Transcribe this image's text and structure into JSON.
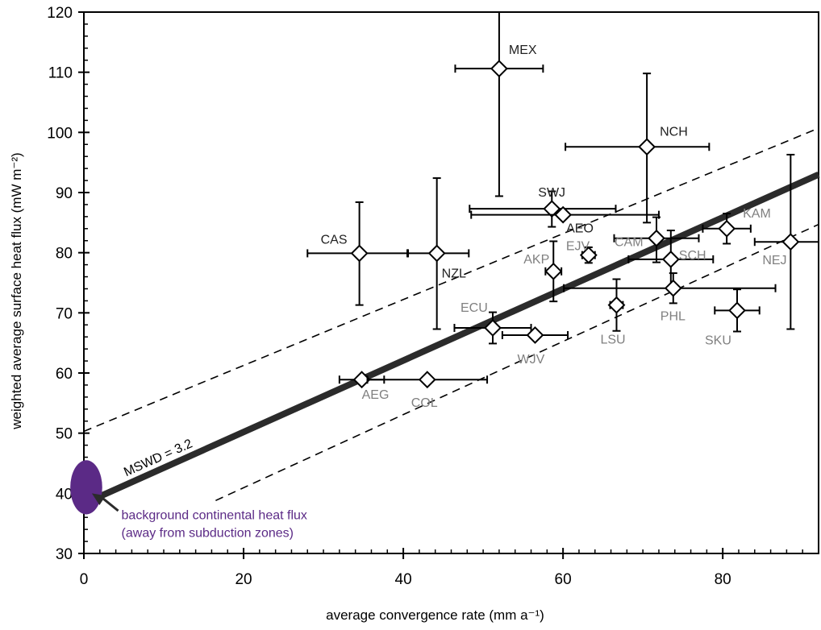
{
  "chart_data": {
    "type": "scatter",
    "title": "",
    "xlabel": "average convergence rate (mm a⁻¹)",
    "ylabel": "weighted average surface heat flux (mW m⁻²)",
    "xlim": [
      0,
      92
    ],
    "ylim": [
      30,
      120
    ],
    "xticks": [
      0,
      20,
      40,
      60,
      80
    ],
    "yticks": [
      30,
      40,
      50,
      60,
      70,
      80,
      90,
      100,
      110,
      120
    ],
    "grid": false,
    "colors": {
      "axis": "#000000",
      "dark_label": "#222222",
      "gray_label": "#808080",
      "fit_line": "#2b2b2b",
      "background_flux": "#5b2a86"
    },
    "points": [
      {
        "label": "MEX",
        "x": 52.0,
        "y": 110.6,
        "xerr": [
          5.5,
          5.5
        ],
        "yerr": [
          21.2,
          9.4
        ],
        "label_color": "dark"
      },
      {
        "label": "NCH",
        "x": 70.5,
        "y": 97.6,
        "xerr": [
          10.2,
          7.8
        ],
        "yerr": [
          12.6,
          12.2
        ],
        "label_color": "dark"
      },
      {
        "label": "SWJ",
        "x": 58.6,
        "y": 87.3,
        "xerr": [
          10.3,
          8.0
        ],
        "yerr": [
          3.0,
          2.9
        ],
        "label_color": "dark"
      },
      {
        "label": "AEO",
        "x": 60.0,
        "y": 86.3,
        "xerr": [
          11.5,
          12.0
        ],
        "yerr": [
          0,
          0
        ],
        "label_color": "dark"
      },
      {
        "label": "CAS",
        "x": 34.5,
        "y": 79.9,
        "xerr": [
          6.5,
          6.0
        ],
        "yerr": [
          8.6,
          8.5
        ],
        "label_color": "dark"
      },
      {
        "label": "NZL",
        "x": 44.2,
        "y": 79.9,
        "xerr": [
          3.6,
          4.0
        ],
        "yerr": [
          12.6,
          12.5
        ],
        "label_color": "dark"
      },
      {
        "label": "CAM",
        "x": 71.7,
        "y": 82.4,
        "xerr": [
          5.3,
          5.3
        ],
        "yerr": [
          4.0,
          3.5
        ],
        "label_color": "gray"
      },
      {
        "label": "KAM",
        "x": 80.5,
        "y": 84.0,
        "xerr": [
          3.0,
          3.0
        ],
        "yerr": [
          2.5,
          2.5
        ],
        "label_color": "gray"
      },
      {
        "label": "NEJ",
        "x": 88.5,
        "y": 81.8,
        "xerr": [
          4.5,
          4.5
        ],
        "yerr": [
          14.5,
          14.5
        ],
        "label_color": "gray"
      },
      {
        "label": "EJV",
        "x": 63.2,
        "y": 79.6,
        "xerr": [
          0.8,
          0.8
        ],
        "yerr": [
          1.3,
          1.3
        ],
        "label_color": "gray"
      },
      {
        "label": "SCH",
        "x": 73.5,
        "y": 78.9,
        "xerr": [
          5.3,
          5.3
        ],
        "yerr": [
          4.8,
          4.8
        ],
        "label_color": "gray"
      },
      {
        "label": "AKP",
        "x": 58.8,
        "y": 76.9,
        "xerr": [
          1.0,
          1.0
        ],
        "yerr": [
          5.0,
          5.0
        ],
        "label_color": "gray"
      },
      {
        "label": "PHL",
        "x": 73.8,
        "y": 74.1,
        "xerr": [
          13.7,
          12.8
        ],
        "yerr": [
          2.5,
          2.5
        ],
        "label_color": "gray"
      },
      {
        "label": "LSU",
        "x": 66.7,
        "y": 71.3,
        "xerr": [
          0.8,
          0.8
        ],
        "yerr": [
          4.3,
          4.3
        ],
        "label_color": "gray"
      },
      {
        "label": "SKU",
        "x": 81.8,
        "y": 70.4,
        "xerr": [
          2.8,
          2.8
        ],
        "yerr": [
          3.5,
          3.5
        ],
        "label_color": "gray"
      },
      {
        "label": "ECU",
        "x": 51.2,
        "y": 67.5,
        "xerr": [
          4.8,
          4.8
        ],
        "yerr": [
          2.6,
          2.6
        ],
        "label_color": "gray"
      },
      {
        "label": "WJV",
        "x": 56.5,
        "y": 66.3,
        "xerr": [
          4.1,
          4.1
        ],
        "yerr": [
          0,
          0
        ],
        "label_color": "gray"
      },
      {
        "label": "AEG",
        "x": 34.8,
        "y": 58.9,
        "xerr": [
          2.8,
          2.8
        ],
        "yerr": [
          0,
          0
        ],
        "label_color": "gray"
      },
      {
        "label": "COL",
        "x": 43.0,
        "y": 58.9,
        "xerr": [
          7.5,
          7.5
        ],
        "yerr": [
          0,
          0
        ],
        "label_color": "gray"
      }
    ],
    "fit_line": {
      "x": [
        0,
        92
      ],
      "y": [
        38.3,
        93.0
      ]
    },
    "confidence_upper": {
      "x": [
        0,
        92
      ],
      "y": [
        50.3,
        100.7
      ]
    },
    "confidence_lower": {
      "x": [
        16.5,
        92
      ],
      "y": [
        38.8,
        84.7
      ]
    },
    "fit_label": "MSWD = 3.2",
    "background_flux": {
      "x": 0.3,
      "y": 41.0,
      "rx": 2.0,
      "ry": 4.5
    },
    "annotation": {
      "lines": [
        "background continental heat flux",
        "(away from subduction zones)"
      ],
      "x": 4.7,
      "y": 36.5,
      "arrow_from": [
        4.3,
        37.1
      ],
      "arrow_to": [
        1.0,
        40.0
      ]
    }
  }
}
